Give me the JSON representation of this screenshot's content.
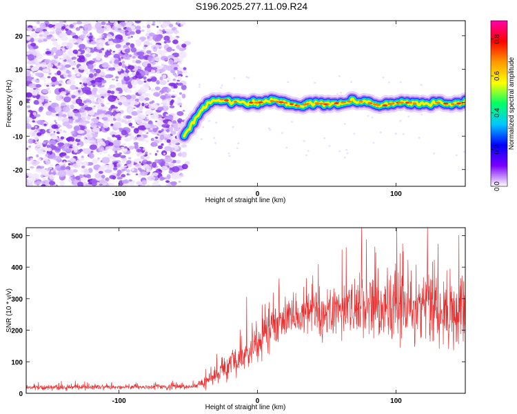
{
  "title": "S196.2025.277.11.09.R24",
  "chart_data": [
    {
      "type": "heatmap",
      "name": "spectrogram",
      "xlabel": "Height of straight line (km)",
      "ylabel": "Frequency (Hz)",
      "xlim": [
        -167,
        150
      ],
      "ylim": [
        -25,
        24.5
      ],
      "xticks": [
        -100,
        0,
        100
      ],
      "yticks": [
        -20,
        -10,
        0,
        10,
        20
      ],
      "noise_region_x": [
        -167,
        -53
      ],
      "signal_ridge": {
        "x": [
          -53,
          -50,
          -45,
          -40,
          -35,
          -30,
          -25,
          -20,
          -10,
          0,
          10,
          20,
          30,
          40,
          50,
          60,
          70,
          80,
          90,
          100,
          110,
          120,
          130,
          140,
          150
        ],
        "y": [
          -10,
          -8,
          -5,
          -2,
          0,
          1,
          1,
          0.5,
          0,
          0,
          0.5,
          0,
          -1,
          0,
          -0.5,
          0,
          0.5,
          0,
          -1,
          0,
          0,
          -0.5,
          0,
          -0.5,
          0
        ]
      },
      "colorbar": {
        "label": "Normalized spectral amplitude",
        "range": [
          0.0,
          0.9
        ],
        "ticks": [
          "0.0",
          "0.2",
          "0.4",
          "0.6",
          "0.8"
        ],
        "colors": [
          "#ffffff",
          "#7a00ff",
          "#0000ff",
          "#00c8ff",
          "#00ff66",
          "#ffff00",
          "#ff9900",
          "#ff0000",
          "#ff00aa"
        ]
      }
    },
    {
      "type": "line",
      "name": "snr",
      "xlabel": "Height of straight line (km)",
      "ylabel": "SNR (10 * v/v)",
      "xlim": [
        -167,
        150
      ],
      "ylim": [
        0,
        525
      ],
      "xticks": [
        -100,
        0,
        100
      ],
      "yticks": [
        0,
        100,
        200,
        300,
        400,
        500
      ],
      "color": "#e83030",
      "envelope": {
        "x": [
          -167,
          -60,
          -45,
          -40,
          -30,
          -20,
          -10,
          0,
          10,
          20,
          40,
          60,
          80,
          100,
          120,
          140,
          150
        ],
        "mean": [
          18,
          20,
          22,
          30,
          55,
          85,
          120,
          160,
          200,
          240,
          255,
          265,
          270,
          275,
          270,
          260,
          265
        ],
        "spread": [
          7,
          7,
          8,
          14,
          28,
          35,
          45,
          55,
          60,
          60,
          70,
          75,
          85,
          95,
          110,
          105,
          80
        ]
      }
    }
  ]
}
